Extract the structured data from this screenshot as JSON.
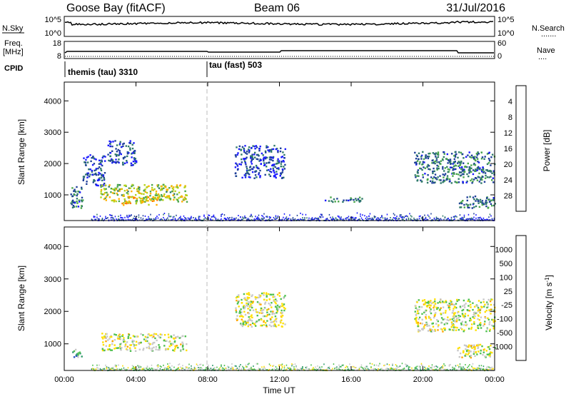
{
  "header": {
    "station": "Goose Bay (fitACF)",
    "beam": "Beam 06",
    "date": "31/Jul/2016"
  },
  "left_labels": {
    "nsky": "N.Sky",
    "freq_line1": "Freq.",
    "freq_line2": "[MHz]",
    "cpid": "CPID"
  },
  "right_labels": {
    "nsearch": "N.Search",
    "nsearch_dots": ".......",
    "nave": "Nave",
    "nave_dots": "...."
  },
  "noise_panel": {
    "left_ticks": [
      "10^5",
      "10^0"
    ],
    "right_ticks": [
      "10^5",
      "10^0"
    ]
  },
  "freq_panel": {
    "left_ticks": [
      "18",
      "8"
    ],
    "right_ticks": [
      "60",
      "0"
    ]
  },
  "cpid": {
    "segments": [
      {
        "label": "themis (tau) 3310",
        "start_hour": 0.0
      },
      {
        "label": "tau (fast) 503",
        "start_hour": 7.85
      }
    ]
  },
  "colors": {
    "power": [
      "#1a1aff",
      "#1f3f9a",
      "#2f7a6a",
      "#4aa64a",
      "#b5d11a",
      "#ffb000",
      "#ff7a00",
      "#ff1a00"
    ],
    "velocity": [
      "#ff0000",
      "#ff6a00",
      "#ffa500",
      "#ffe000",
      "#c8c8c8",
      "#4fc04f",
      "#2f9a6a",
      "#2a52be",
      "#1a1aa0"
    ],
    "ground": "#c0c0c0"
  },
  "chart_data": [
    {
      "type": "heatmap",
      "name": "power",
      "ylabel": "Slant Range [km]",
      "yticks": [
        "1000",
        "2000",
        "3000",
        "4000"
      ],
      "ylim": [
        180,
        4600
      ],
      "xlim": [
        0,
        24
      ],
      "colorbar_label": "Power [dB]",
      "colorbar_ticks": [
        "4",
        "8",
        "12",
        "16",
        "20",
        "24",
        "28"
      ],
      "clim": [
        0,
        32
      ],
      "scatter_regions": [
        {
          "hour_start": 0.3,
          "hour_end": 1.0,
          "range_start": 600,
          "range_end": 1300,
          "level": 2
        },
        {
          "hour_start": 1.0,
          "hour_end": 2.3,
          "range_start": 1300,
          "range_end": 2300,
          "level": 1
        },
        {
          "hour_start": 2.0,
          "hour_end": 6.8,
          "range_start": 800,
          "range_end": 1350,
          "level": 4
        },
        {
          "hour_start": 2.4,
          "hour_end": 4.0,
          "range_start": 1950,
          "range_end": 2750,
          "level": 1
        },
        {
          "hour_start": 3.1,
          "hour_end": 5.2,
          "range_start": 700,
          "range_end": 1000,
          "level": 5
        },
        {
          "hour_start": 9.5,
          "hour_end": 12.3,
          "range_start": 1550,
          "range_end": 2600,
          "level": 1
        },
        {
          "hour_start": 14.5,
          "hour_end": 16.7,
          "range_start": 800,
          "range_end": 950,
          "level": 2
        },
        {
          "hour_start": 19.5,
          "hour_end": 24.0,
          "range_start": 1400,
          "range_end": 2400,
          "level": 2
        },
        {
          "hour_start": 21.9,
          "hour_end": 24.0,
          "range_start": 600,
          "range_end": 1000,
          "level": 2
        }
      ],
      "near_range_band": {
        "range_start": 200,
        "range_end": 450,
        "hour_start": 1.5,
        "hour_end": 24.0,
        "level": 1
      }
    },
    {
      "type": "heatmap",
      "name": "velocity",
      "xlabel": "Time UT",
      "ylabel": "Slant Range [km]",
      "xticks": [
        "00:00",
        "04:00",
        "08:00",
        "12:00",
        "16:00",
        "20:00",
        "00:00"
      ],
      "yticks": [
        "1000",
        "2000",
        "3000",
        "4000"
      ],
      "ylim": [
        180,
        4600
      ],
      "xlim": [
        0,
        24
      ],
      "colorbar_label": "Velocity [m s^-1]",
      "colorbar_ticks": [
        "1000",
        "500",
        "100",
        "25",
        "-25",
        "-100",
        "-500",
        "-1000"
      ],
      "scatter_regions": [
        {
          "hour_start": 0.3,
          "hour_end": 1.0,
          "range_start": 600,
          "range_end": 850,
          "level": 6
        },
        {
          "hour_start": 2.0,
          "hour_end": 6.8,
          "range_start": 800,
          "range_end": 1350,
          "level": 4
        },
        {
          "hour_start": 9.5,
          "hour_end": 12.3,
          "range_start": 1550,
          "range_end": 2600,
          "level": 4
        },
        {
          "hour_start": 19.5,
          "hour_end": 24.0,
          "range_start": 1400,
          "range_end": 2400,
          "level": 4
        },
        {
          "hour_start": 21.9,
          "hour_end": 24.0,
          "range_start": 600,
          "range_end": 1000,
          "level": 4
        }
      ],
      "near_range_band": {
        "range_start": 200,
        "range_end": 450,
        "hour_start": 1.5,
        "hour_end": 24.0,
        "level": 5
      }
    }
  ]
}
